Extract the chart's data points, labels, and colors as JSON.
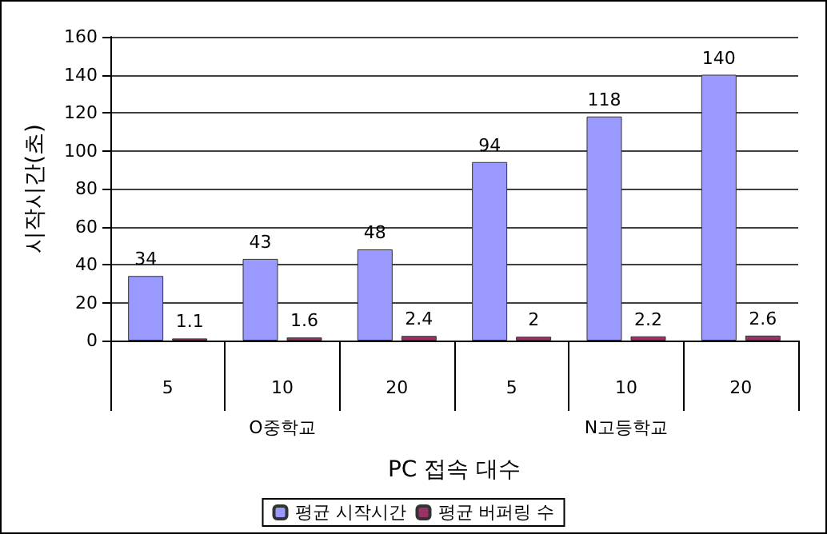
{
  "chart_data": {
    "type": "bar",
    "xlabel": "PC 접속 대수",
    "ylabel": "시작시간(초)",
    "categories": [
      "5",
      "10",
      "20",
      "5",
      "10",
      "20"
    ],
    "series": [
      {
        "name": "평균 시작시간",
        "color": "#9999ff",
        "values": [
          34,
          43,
          48,
          94,
          118,
          140
        ]
      },
      {
        "name": "평균 버퍼링 수",
        "color": "#993366",
        "values": [
          1.1,
          1.6,
          2.4,
          2,
          2.2,
          2.6
        ]
      }
    ],
    "annotations": [
      "O중학교",
      "N고등학교"
    ],
    "ylim": [
      0,
      160
    ],
    "yticks": [
      0,
      20,
      40,
      60,
      80,
      100,
      120,
      140,
      160
    ],
    "grid": "y",
    "legend": "bottom",
    "data_labels": true
  }
}
